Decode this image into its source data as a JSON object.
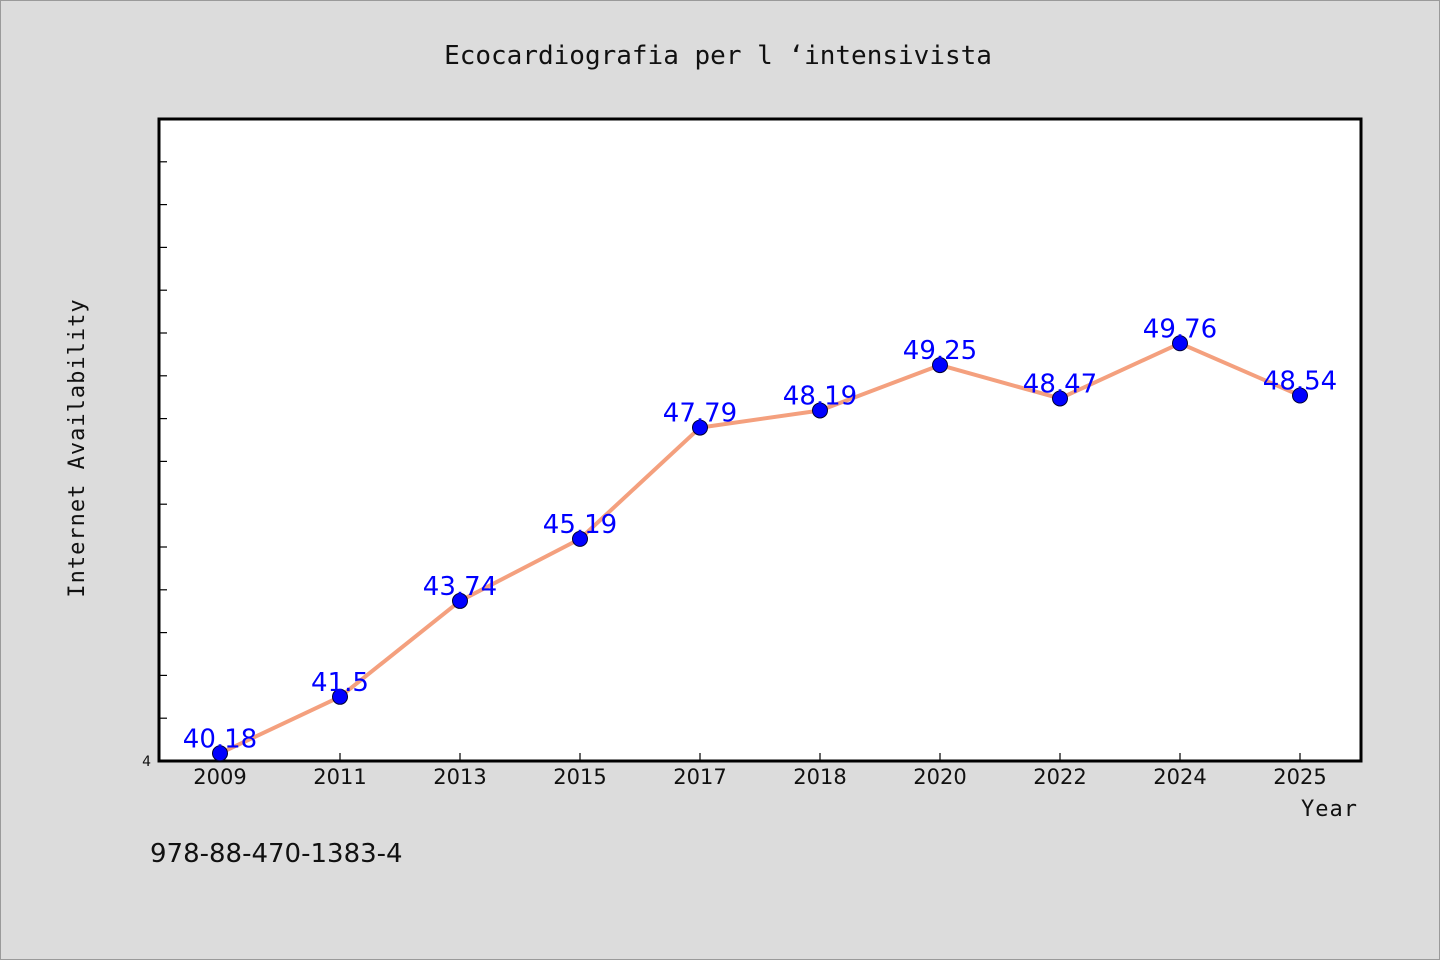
{
  "chart_data": {
    "type": "line",
    "title": "Ecocardiografia per l ‘intensivista",
    "xlabel": "Year",
    "ylabel": "Internet Availability",
    "categories": [
      "2009",
      "2011",
      "2013",
      "2015",
      "2017",
      "2018",
      "2020",
      "2022",
      "2024",
      "2025"
    ],
    "series": [
      {
        "values": [
          40.18,
          41.5,
          43.74,
          45.19,
          47.79,
          48.19,
          49.25,
          48.47,
          49.76,
          48.54
        ],
        "labels": [
          "40.18",
          "41.5",
          "43.74",
          "45.19",
          "47.79",
          "48.19",
          "49.25",
          "48.47",
          "49.76",
          "48.54"
        ],
        "line_color": "#f4a07e",
        "marker_color": "#0000ff"
      }
    ],
    "ylim": [
      40,
      55
    ],
    "y_tick_label": "4",
    "grid": false,
    "legend": "none"
  },
  "footer": {
    "isbn": "978-88-470-1383-4"
  },
  "colors": {
    "background": "#dcdcdc",
    "plot_background": "#ffffff",
    "data_label": "#0000ff"
  }
}
